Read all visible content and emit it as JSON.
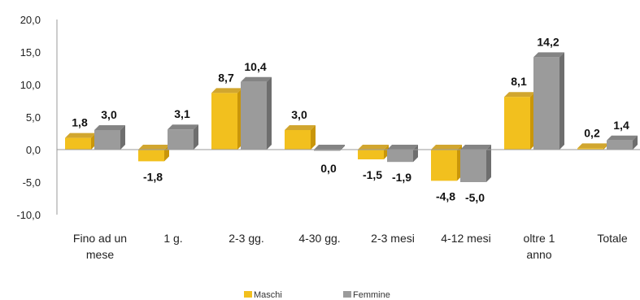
{
  "chart_data": {
    "type": "bar",
    "categories": [
      [
        "Fino ad un",
        "mese"
      ],
      [
        "1 g."
      ],
      [
        "2-3 gg."
      ],
      [
        "4-30 gg."
      ],
      [
        "2-3 mesi"
      ],
      [
        "4-12 mesi"
      ],
      [
        "oltre 1",
        "anno"
      ],
      [
        "Totale"
      ]
    ],
    "series": [
      {
        "name": "Maschi",
        "values": [
          1.8,
          -1.8,
          8.7,
          3.0,
          -1.5,
          -4.8,
          8.1,
          0.2
        ],
        "labels": [
          "1,8",
          "-1,8",
          "8,7",
          "3,0",
          "-1,5",
          "-4,8",
          "8,1",
          "0,2"
        ],
        "color": "#f2c01e",
        "shade": "#c9960a"
      },
      {
        "name": "Femmine",
        "values": [
          3.0,
          3.1,
          10.4,
          0.0,
          -1.9,
          -5.0,
          14.2,
          1.4
        ],
        "labels": [
          "3,0",
          "3,1",
          "10,4",
          "0,0",
          "-1,9",
          "-5,0",
          "14,2",
          "1,4"
        ],
        "color": "#9b9b9b",
        "shade": "#6e6e6e"
      }
    ],
    "ylim": [
      -10,
      20
    ],
    "yticks": [
      -10,
      -5,
      0,
      5,
      10,
      15,
      20
    ],
    "ytick_labels": [
      "-10,0",
      "-5,0",
      "0,0",
      "5,0",
      "10,0",
      "15,0",
      "20,0"
    ],
    "legend_position": "bottom",
    "grid": false
  }
}
